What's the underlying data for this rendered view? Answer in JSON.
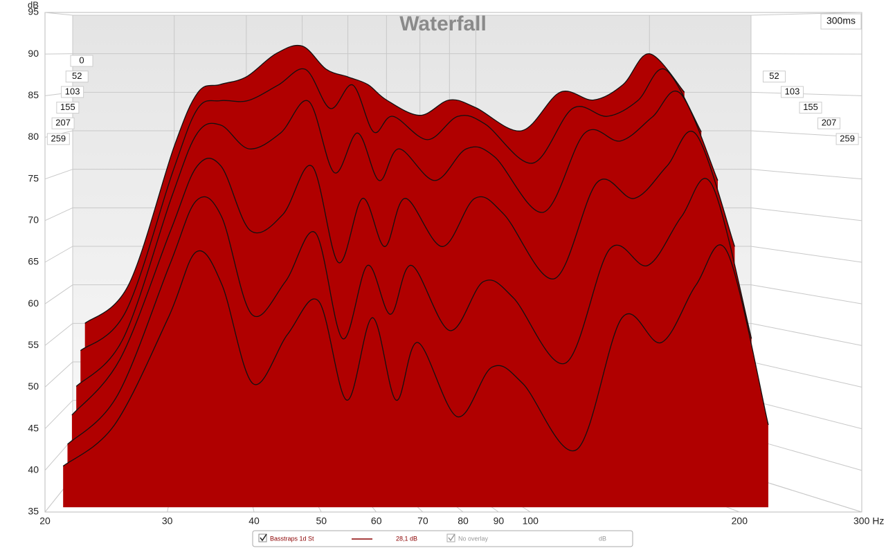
{
  "chart_data": {
    "type": "waterfall",
    "title": "Waterfall",
    "y_label": "dB",
    "x": [
      21,
      25,
      30,
      33,
      36,
      40,
      45,
      50,
      55,
      60,
      65,
      70,
      80,
      90,
      100,
      120,
      140,
      160,
      180,
      200,
      230
    ],
    "xlim": [
      20,
      300
    ],
    "log_x": true,
    "xticks": [
      20,
      30,
      40,
      50,
      60,
      70,
      80,
      90,
      100,
      200,
      {
        "value": 300,
        "label": "300 Hz"
      }
    ],
    "ylim": [
      35,
      95
    ],
    "yticks": [
      35,
      40,
      45,
      50,
      55,
      60,
      65,
      70,
      75,
      80,
      85,
      90,
      95
    ],
    "tlim": [
      0,
      {
        "value": 300,
        "label": "300ms"
      }
    ],
    "grid": true,
    "series": [
      {
        "time": 0,
        "color": "#b00000",
        "values": [
          55,
          60,
          78,
          85,
          86,
          87,
          90,
          91,
          88,
          87,
          86,
          84,
          82,
          84,
          83,
          80,
          85,
          84,
          86,
          90,
          85
        ]
      },
      {
        "time": 52,
        "color": "#b00000",
        "values": [
          52,
          57,
          75,
          83,
          84,
          84,
          86,
          88,
          83,
          86,
          80,
          82,
          79,
          82,
          81,
          76,
          83,
          82,
          84,
          88,
          80
        ]
      },
      {
        "time": 103,
        "color": "#b00000",
        "values": [
          48,
          54,
          72,
          80,
          81,
          78,
          80,
          84,
          75,
          80,
          74,
          78,
          74,
          78,
          77,
          70,
          80,
          79,
          82,
          85,
          74
        ]
      },
      {
        "time": 155,
        "color": "#b00000",
        "values": [
          45,
          52,
          68,
          76,
          76,
          68,
          70,
          76,
          64,
          72,
          66,
          72,
          66,
          72,
          70,
          62,
          74,
          72,
          76,
          80,
          66
        ]
      },
      {
        "time": 207,
        "color": "#b00000",
        "values": [
          42,
          48,
          64,
          72,
          70,
          58,
          62,
          68,
          55,
          64,
          58,
          64,
          56,
          62,
          60,
          52,
          66,
          64,
          70,
          74,
          55
        ]
      },
      {
        "time": 259,
        "color": "#b00000",
        "values": [
          40,
          45,
          58,
          66,
          62,
          50,
          56,
          60,
          48,
          58,
          48,
          55,
          46,
          52,
          50,
          42,
          58,
          55,
          62,
          66,
          45
        ]
      }
    ],
    "legend": {
      "name": "Basstraps 1d St",
      "level": "28,1 dB",
      "overlay": "No overlay",
      "unit": "dB"
    }
  }
}
